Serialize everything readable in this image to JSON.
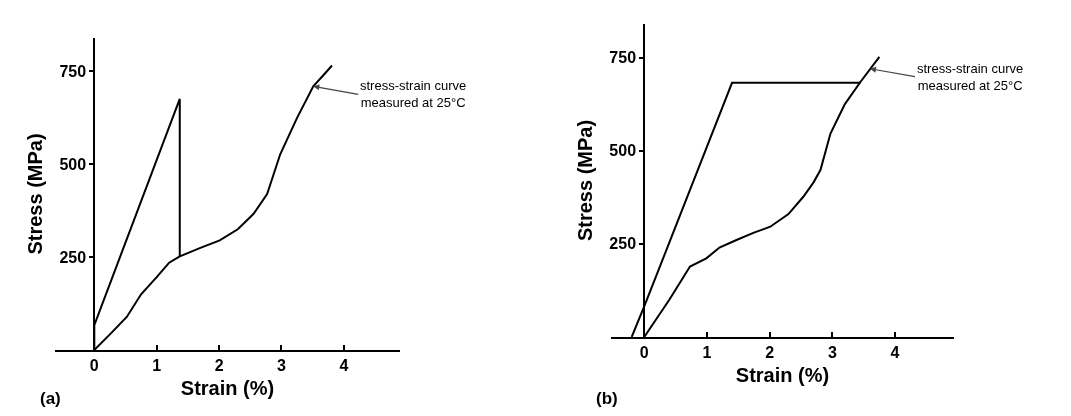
{
  "chart_data": [
    {
      "type": "line",
      "xlabel": "Strain (%)",
      "ylabel": "Stress (MPa)",
      "xlim": [
        -0.63,
        4.9
      ],
      "ylim": [
        0,
        840
      ],
      "xticks": [
        0,
        1,
        2,
        3,
        4
      ],
      "yticks": [
        250,
        500,
        750
      ],
      "series": [
        {
          "color": "#000000",
          "x": [
            0,
            0.25,
            0.52,
            0.75,
            1.0,
            1.2,
            1.37,
            1.7,
            2.01,
            2.3,
            2.55,
            2.77,
            2.98,
            3.25,
            3.51,
            3.7,
            3.81
          ],
          "values": [
            0,
            42,
            89,
            150,
            196,
            235,
            252,
            275,
            295,
            325,
            366,
            420,
            527,
            625,
            710,
            745,
            766
          ]
        },
        {
          "color": "#000000",
          "x": [
            0,
            0,
            1.37,
            1.37
          ],
          "values": [
            0,
            67,
            676,
            252
          ]
        }
      ],
      "annotations": [
        {
          "text": "stress-strain curve\nmeasured at 25°C",
          "x": 3.51,
          "y": 710
        },
        "(a)"
      ]
    },
    {
      "type": "line",
      "xlabel": "Strain (%)",
      "ylabel": "Stress (MPa)",
      "xlim": [
        -0.53,
        4.94
      ],
      "ylim": [
        0,
        840
      ],
      "xticks": [
        0,
        1,
        2,
        3,
        4
      ],
      "yticks": [
        250,
        500,
        750
      ],
      "series": [
        {
          "color": "#000000",
          "x": [
            0,
            0.4,
            0.73,
            0.99,
            1.2,
            1.48,
            1.75,
            2.01,
            2.3,
            2.54,
            2.7,
            2.81,
            2.97,
            3.2,
            3.45,
            3.75
          ],
          "values": [
            0,
            100,
            189,
            211,
            240,
            261,
            280,
            296,
            330,
            377,
            415,
            448,
            546,
            625,
            685,
            752
          ]
        },
        {
          "color": "#000000",
          "x": [
            -0.2,
            0,
            1.4,
            3.45
          ],
          "values": [
            0,
            82,
            682,
            682
          ]
        }
      ],
      "annotations": [
        {
          "text": "stress-strain curve\nmeasured at 25°C",
          "x": 3.6,
          "y": 720
        },
        "(b)"
      ]
    }
  ]
}
